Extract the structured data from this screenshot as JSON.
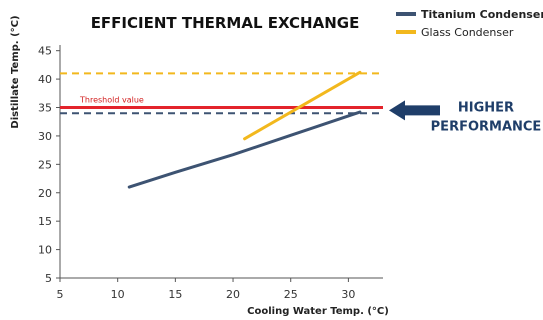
{
  "chart_data": {
    "type": "line",
    "title": "EFFICIENT THERMAL EXCHANGE",
    "xlabel": "Cooling Water Temp. (°C)",
    "ylabel": "Distillate Temp. (°C)",
    "xlim": [
      5,
      33
    ],
    "ylim": [
      5,
      46
    ],
    "xticks": [
      5,
      10,
      15,
      20,
      25,
      30
    ],
    "yticks": [
      5,
      10,
      15,
      20,
      25,
      30,
      35,
      40,
      45
    ],
    "grid": false,
    "legend_position": "top-right",
    "series": [
      {
        "name": "Titanium Condenser",
        "color": "#3d5372",
        "x": [
          11,
          15,
          20,
          25,
          31
        ],
        "y": [
          21,
          23.6,
          26.7,
          30.1,
          34.2
        ]
      },
      {
        "name": "Glass Condenser",
        "color": "#f2b81d",
        "x": [
          21,
          31
        ],
        "y": [
          29.5,
          41.2
        ]
      }
    ],
    "reference_lines": [
      {
        "label": "",
        "y": 41,
        "color": "#f2b81d",
        "style": "dashed",
        "series": "Glass Condenser"
      },
      {
        "label": "",
        "y": 34,
        "color": "#3d5372",
        "style": "dashed",
        "series": "Titanium Condenser"
      },
      {
        "label": "Threshold value",
        "y": 35,
        "color": "#e3232b",
        "style": "solid"
      }
    ],
    "annotation": {
      "line1": "HIGHER",
      "line2": "PERFORMANCE",
      "arrow_color": "#1f3e69",
      "points_to_y": 34.5
    }
  }
}
